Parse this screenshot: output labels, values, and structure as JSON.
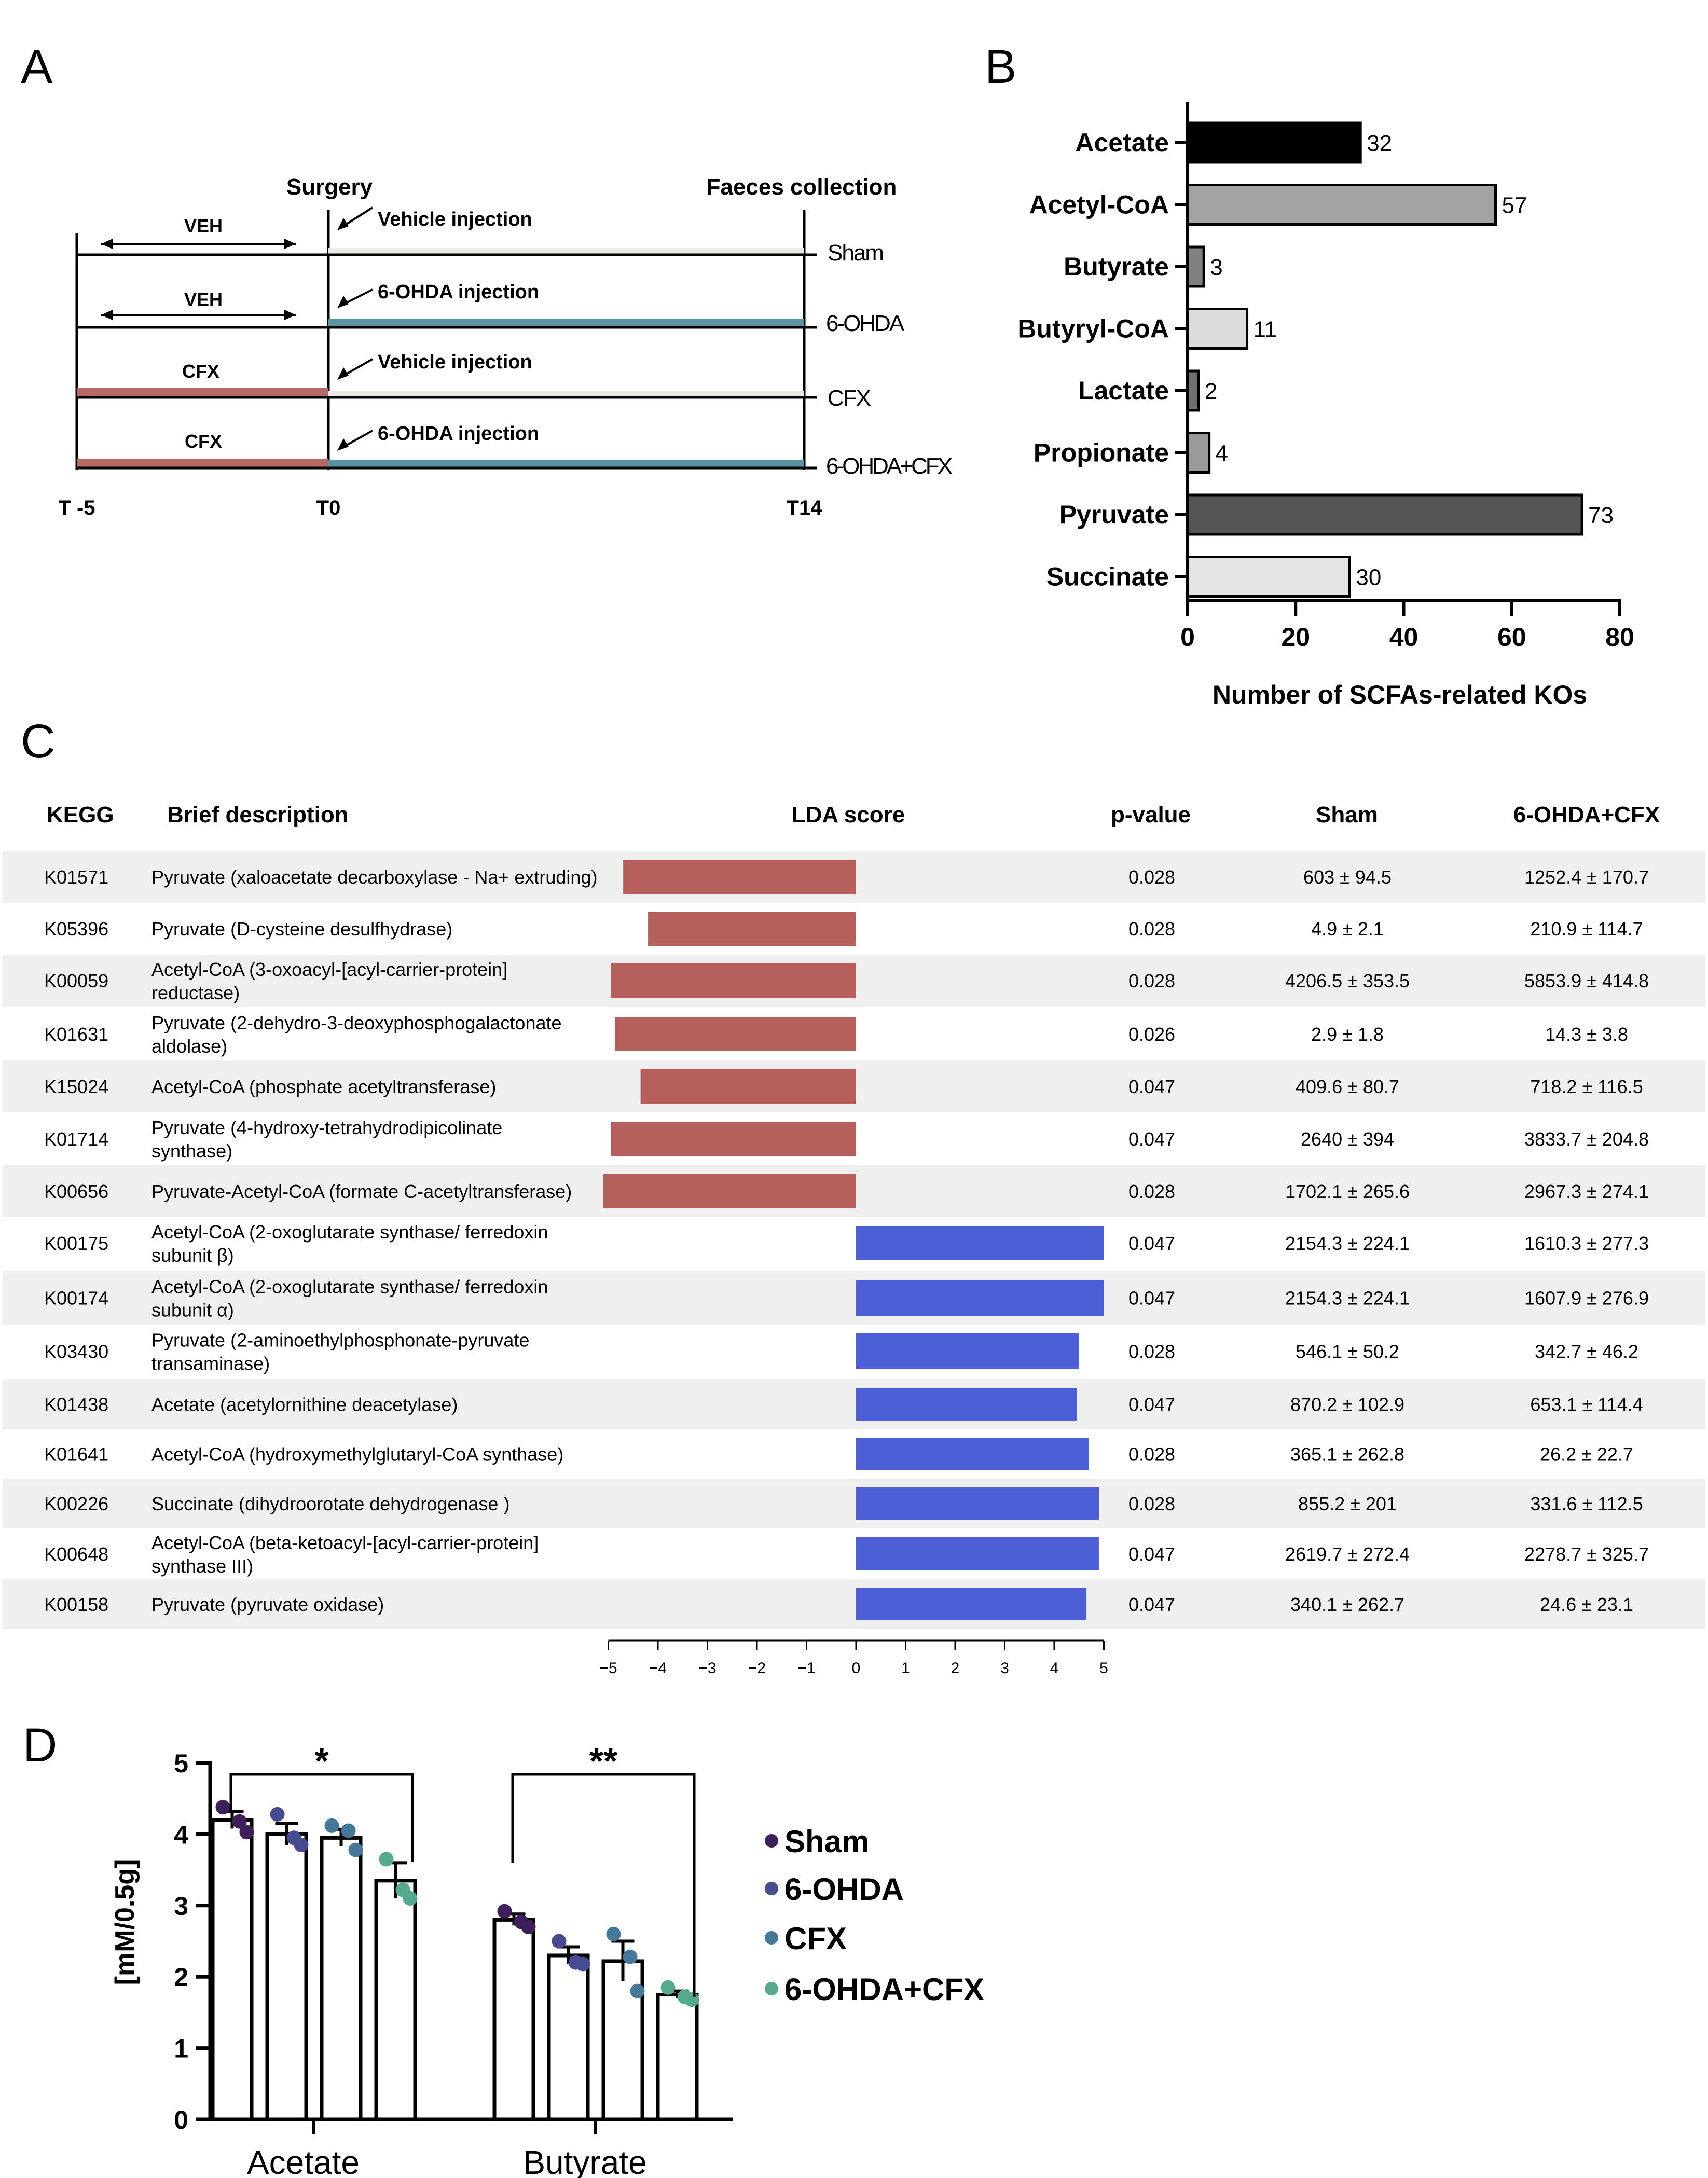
{
  "panel_labels": {
    "a": "A",
    "b": "B",
    "c": "C",
    "d": "D"
  },
  "colors": {
    "red_bar": "#b5605d",
    "blue_bar": "#4d5fd6",
    "sham_line": "#e8eae4",
    "ohda_line": "#5b93a3",
    "cfx_line": "#b86966",
    "sham_dot": "#3c1f5b",
    "ohda_dot": "#464c8f",
    "cfx_dot": "#46789a",
    "ohda_cfx_dot": "#55a98f",
    "row_shade": "#efefef"
  },
  "panel_a": {
    "surgery": "Surgery",
    "faeces": "Faeces collection",
    "groups": [
      {
        "pre_label": "VEH",
        "injection": "Vehicle injection",
        "group": "Sham"
      },
      {
        "pre_label": "VEH",
        "injection": "6-OHDA injection",
        "group": "6-OHDA"
      },
      {
        "pre_label": "CFX",
        "injection": "Vehicle injection",
        "group": "CFX"
      },
      {
        "pre_label": "CFX",
        "injection": "6-OHDA injection",
        "group": "6-OHDA+CFX"
      }
    ],
    "timepoints": [
      "T -5",
      "T0",
      "T14"
    ]
  },
  "chart_data": [
    {
      "id": "B",
      "type": "bar",
      "orientation": "horizontal",
      "categories": [
        "Acetate",
        "Acetyl-CoA",
        "Butyrate",
        "Butyryl-CoA",
        "Lactate",
        "Propionate",
        "Pyruvate",
        "Succinate"
      ],
      "values": [
        32,
        57,
        3,
        11,
        2,
        4,
        73,
        30
      ],
      "bar_colors": [
        "#000000",
        "#a3a3a6",
        "#808080",
        "#dcdcdc",
        "#707070",
        "#9a9a9a",
        "#555555",
        "#e4e4e4"
      ],
      "xlabel": "Number of  SCFAs-related KOs",
      "xlim": [
        0,
        80
      ],
      "xticks": [
        "0",
        "20",
        "40",
        "60",
        "80"
      ]
    },
    {
      "id": "C",
      "type": "table",
      "headers": {
        "kegg": "KEGG",
        "desc": "Brief description",
        "lda": "LDA score",
        "p": "p-value",
        "sham": "Sham",
        "ohda_cfx": "6-OHDA+CFX"
      },
      "xlim": [
        -5,
        5
      ],
      "xticks": [
        "−5",
        "−4",
        "−3",
        "−2",
        "−1",
        "0",
        "1",
        "2",
        "3",
        "4",
        "5"
      ],
      "rows": [
        {
          "kegg": "K01571",
          "desc": [
            "Pyruvate (xaloacetate decarboxylase - Na+ extruding)"
          ],
          "lda": -4.7,
          "p": "0.028",
          "sham": "603 ± 94.5",
          "cfx": "1252.4 ± 170.7"
        },
        {
          "kegg": "K05396",
          "desc": [
            "Pyruvate (D-cysteine desulfhydrase)"
          ],
          "lda": -4.2,
          "p": "0.028",
          "sham": "4.9 ± 2.1",
          "cfx": "210.9 ± 114.7"
        },
        {
          "kegg": "K00059",
          "desc": [
            "Acetyl-CoA (3-oxoacyl-[acyl-carrier-protein]",
            "reductase)"
          ],
          "lda": -4.95,
          "p": "0.028",
          "sham": "4206.5 ± 353.5",
          "cfx": "5853.9 ± 414.8"
        },
        {
          "kegg": "K01631",
          "desc": [
            "Pyruvate (2-dehydro-3-deoxyphosphogalactonate",
            "aldolase)"
          ],
          "lda": -4.87,
          "p": "0.026",
          "sham": "2.9 ± 1.8",
          "cfx": "14.3 ± 3.8"
        },
        {
          "kegg": "K15024",
          "desc": [
            "Acetyl-CoA (phosphate acetyltransferase)"
          ],
          "lda": -4.35,
          "p": "0.047",
          "sham": "409.6 ± 80.7",
          "cfx": "718.2 ± 116.5"
        },
        {
          "kegg": "K01714",
          "desc": [
            "Pyruvate (4-hydroxy-tetrahydrodipicolinate",
            "synthase)"
          ],
          "lda": -4.95,
          "p": "0.047",
          "sham": "2640 ± 394",
          "cfx": "3833.7 ± 204.8"
        },
        {
          "kegg": "K00656",
          "desc": [
            "Pyruvate-Acetyl-CoA (formate C-acetyltransferase)"
          ],
          "lda": -5.1,
          "p": "0.028",
          "sham": "1702.1 ± 265.6",
          "cfx": "2967.3 ± 274.1"
        },
        {
          "kegg": "K00175",
          "desc": [
            "Acetyl-CoA (2-oxoglutarate synthase/ ferredoxin",
            "subunit β)"
          ],
          "lda": 5.0,
          "p": "0.047",
          "sham": "2154.3 ± 224.1",
          "cfx": "1610.3 ± 277.3"
        },
        {
          "kegg": "K00174",
          "desc": [
            "Acetyl-CoA (2-oxoglutarate synthase/ ferredoxin",
            "subunit α)"
          ],
          "lda": 5.0,
          "p": "0.047",
          "sham": "2154.3 ± 224.1",
          "cfx": "1607.9 ± 276.9"
        },
        {
          "kegg": "K03430",
          "desc": [
            "Pyruvate (2-aminoethylphosphonate-pyruvate",
            "transaminase)"
          ],
          "lda": 4.5,
          "p": "0.028",
          "sham": "546.1 ± 50.2",
          "cfx": "342.7 ± 46.2"
        },
        {
          "kegg": "K01438",
          "desc": [
            "Acetate (acetylornithine deacetylase)"
          ],
          "lda": 4.45,
          "p": "0.047",
          "sham": "870.2 ± 102.9",
          "cfx": "653.1 ± 114.4"
        },
        {
          "kegg": "K01641",
          "desc": [
            "Acetyl-CoA (hydroxymethylglutaryl-CoA synthase)"
          ],
          "lda": 4.7,
          "p": "0.028",
          "sham": "365.1 ± 262.8",
          "cfx": "26.2 ± 22.7"
        },
        {
          "kegg": "K00226",
          "desc": [
            "Succinate (dihydroorotate dehydrogenase )"
          ],
          "lda": 4.9,
          "p": "0.028",
          "sham": "855.2 ± 201",
          "cfx": "331.6 ± 112.5"
        },
        {
          "kegg": "K00648",
          "desc": [
            "Acetyl-CoA (beta-ketoacyl-[acyl-carrier-protein]",
            "synthase III)"
          ],
          "lda": 4.9,
          "p": "0.047",
          "sham": "2619.7 ± 272.4",
          "cfx": "2278.7 ± 325.7"
        },
        {
          "kegg": "K00158",
          "desc": [
            "Pyruvate (pyruvate oxidase)"
          ],
          "lda": 4.65,
          "p": "0.047",
          "sham": "340.1 ± 262.7",
          "cfx": "24.6 ± 23.1"
        }
      ]
    },
    {
      "id": "D",
      "type": "bar",
      "categories": [
        "Acetate",
        "Butyrate"
      ],
      "ylabel": "[mM/0.5g]",
      "ylim": [
        0,
        5
      ],
      "yticks": [
        "0",
        "1",
        "2",
        "3",
        "4",
        "5"
      ],
      "series": [
        {
          "name": "Sham",
          "color": "#3c1f5b",
          "values": [
            4.2,
            2.8
          ],
          "sem": [
            0.12,
            0.08
          ],
          "points": [
            [
              4.38,
              4.18,
              4.03
            ],
            [
              2.92,
              2.77,
              2.7
            ]
          ]
        },
        {
          "name": "6-OHDA",
          "color": "#464c8f",
          "values": [
            4.0,
            2.3
          ],
          "sem": [
            0.15,
            0.12
          ],
          "points": [
            [
              4.28,
              3.95,
              3.85
            ],
            [
              2.5,
              2.2,
              2.18
            ]
          ]
        },
        {
          "name": "CFX",
          "color": "#46789a",
          "values": [
            3.95,
            2.22
          ],
          "sem": [
            0.12,
            0.28
          ],
          "points": [
            [
              4.12,
              4.05,
              3.78
            ],
            [
              2.6,
              2.28,
              1.8
            ]
          ]
        },
        {
          "name": "6-OHDA+CFX",
          "color": "#55a98f",
          "values": [
            3.35,
            1.75
          ],
          "sem": [
            0.25,
            0.05
          ],
          "points": [
            [
              3.65,
              3.22,
              3.1
            ],
            [
              1.85,
              1.72,
              1.68
            ]
          ]
        }
      ],
      "significance": [
        {
          "category": "Acetate",
          "label": "*"
        },
        {
          "category": "Butyrate",
          "label": "**"
        }
      ]
    }
  ]
}
